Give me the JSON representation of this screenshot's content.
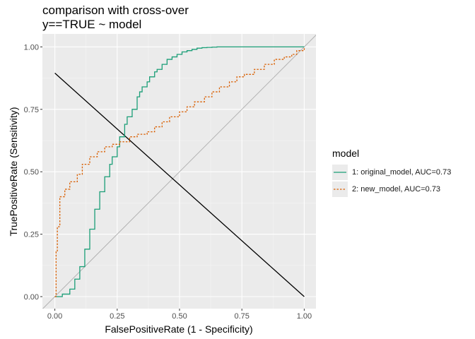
{
  "chart_data": {
    "type": "line",
    "title": "comparison with cross-over",
    "subtitle": "y==TRUE ~ model",
    "xlabel": "FalsePositiveRate (1 - Specificity)",
    "ylabel": "TruePositiveRate (Sensitivity)",
    "xlim": [
      0,
      1
    ],
    "ylim": [
      0,
      1
    ],
    "xticks": [
      "0.00",
      "0.25",
      "0.50",
      "0.75",
      "1.00"
    ],
    "yticks": [
      "0.00",
      "0.25",
      "0.50",
      "0.75",
      "1.00"
    ],
    "grid": true,
    "legend_title": "model",
    "legend_position": "right",
    "series": [
      {
        "name": "1: original_model, AUC=0.73",
        "color": "#1b9e77",
        "line": "solid",
        "x": [
          0,
          0.03,
          0.06,
          0.08,
          0.1,
          0.12,
          0.14,
          0.16,
          0.18,
          0.2,
          0.22,
          0.23,
          0.25,
          0.26,
          0.28,
          0.29,
          0.31,
          0.33,
          0.34,
          0.35,
          0.37,
          0.38,
          0.4,
          0.41,
          0.43,
          0.45,
          0.47,
          0.49,
          0.51,
          0.53,
          0.55,
          0.57,
          0.59,
          0.61,
          0.63,
          0.65,
          0.68,
          0.72,
          0.8,
          1.0
        ],
        "y": [
          0,
          0.01,
          0.03,
          0.07,
          0.12,
          0.19,
          0.27,
          0.35,
          0.42,
          0.48,
          0.53,
          0.56,
          0.6,
          0.64,
          0.69,
          0.72,
          0.75,
          0.8,
          0.82,
          0.84,
          0.86,
          0.88,
          0.9,
          0.91,
          0.93,
          0.95,
          0.96,
          0.97,
          0.98,
          0.985,
          0.99,
          0.995,
          0.997,
          0.998,
          0.999,
          1.0,
          1.0,
          1.0,
          1.0,
          1.0
        ]
      },
      {
        "name": "2: new_model, AUC=0.73",
        "color": "#d95f02",
        "line": "dashed",
        "x": [
          0,
          0.005,
          0.01,
          0.02,
          0.04,
          0.06,
          0.09,
          0.11,
          0.14,
          0.17,
          0.2,
          0.23,
          0.26,
          0.3,
          0.33,
          0.37,
          0.4,
          0.43,
          0.46,
          0.5,
          0.53,
          0.56,
          0.6,
          0.63,
          0.66,
          0.7,
          0.73,
          0.76,
          0.8,
          0.84,
          0.88,
          0.92,
          0.95,
          0.97,
          1.0
        ],
        "y": [
          0,
          0.18,
          0.28,
          0.4,
          0.43,
          0.46,
          0.49,
          0.53,
          0.56,
          0.58,
          0.6,
          0.61,
          0.62,
          0.64,
          0.65,
          0.66,
          0.68,
          0.7,
          0.72,
          0.74,
          0.76,
          0.78,
          0.8,
          0.82,
          0.84,
          0.86,
          0.88,
          0.89,
          0.91,
          0.93,
          0.95,
          0.96,
          0.97,
          0.985,
          1.0
        ]
      }
    ],
    "reference_lines": [
      {
        "kind": "diagonal",
        "color": "#b3b3b3",
        "x": [
          -0.05,
          1.05
        ],
        "y": [
          -0.05,
          1.05
        ]
      },
      {
        "kind": "cross-over",
        "color": "#000000",
        "x": [
          0,
          1
        ],
        "y": [
          0.895,
          0
        ]
      }
    ]
  }
}
